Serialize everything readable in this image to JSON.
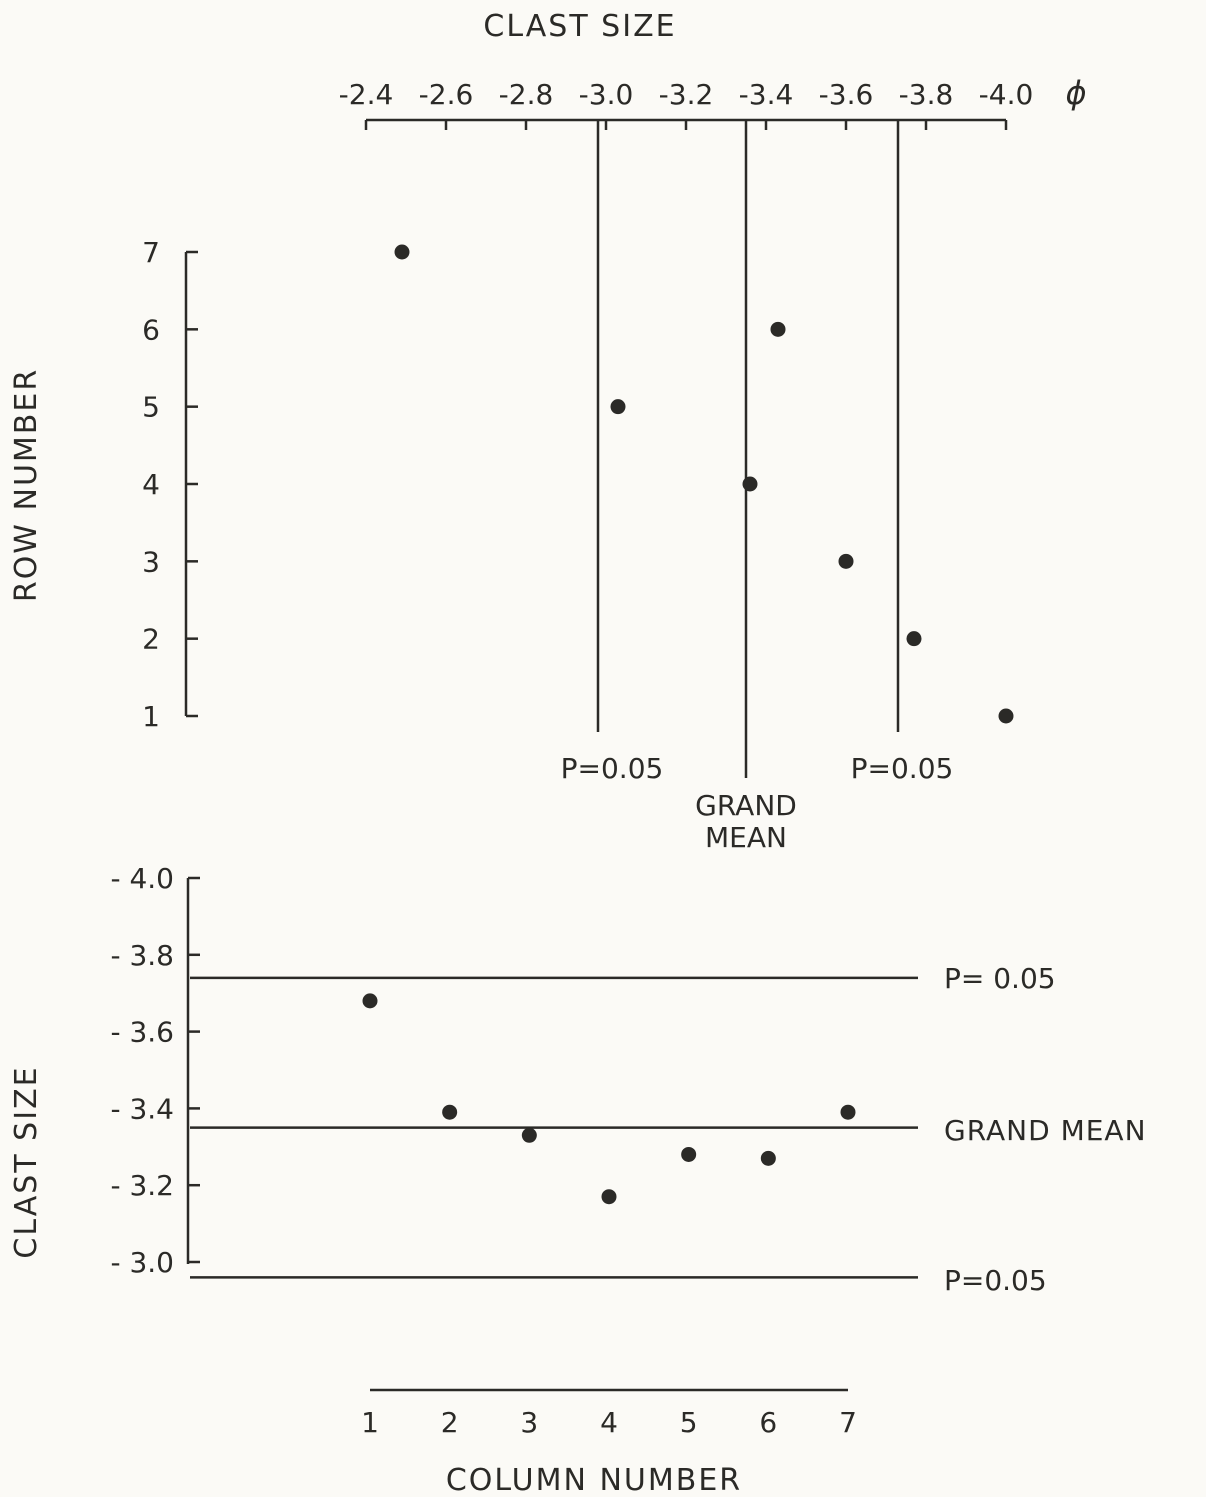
{
  "chart_data": [
    {
      "id": "rows",
      "type": "scatter",
      "title": "",
      "xlabel": "CLAST SIZE",
      "x_unit": "ϕ",
      "ylabel": "ROW NUMBER",
      "x_ticks": [
        "-2.4",
        "-2.6",
        "-2.8",
        "-3.0",
        "-3.2",
        "-3.4",
        "-3.6",
        "-3.8",
        "-4.0"
      ],
      "x_tick_values": [
        -2.4,
        -2.6,
        -2.8,
        -3.0,
        -3.2,
        -3.4,
        -3.6,
        -3.8,
        -4.0
      ],
      "y_ticks": [
        "1",
        "2",
        "3",
        "4",
        "5",
        "6",
        "7"
      ],
      "xlim": [
        -2.4,
        -4.0
      ],
      "ylim": [
        1,
        7
      ],
      "points": [
        {
          "row": 7,
          "x": -2.49
        },
        {
          "row": 6,
          "x": -3.43
        },
        {
          "row": 5,
          "x": -3.03
        },
        {
          "row": 4,
          "x": -3.36
        },
        {
          "row": 3,
          "x": -3.6
        },
        {
          "row": 2,
          "x": -3.77
        },
        {
          "row": 1,
          "x": -4.0
        }
      ],
      "reference_lines": [
        {
          "label": "P=0.05",
          "x": -2.98
        },
        {
          "label": "GRAND MEAN",
          "x": -3.35
        },
        {
          "label": "P=0.05",
          "x": -3.73
        }
      ]
    },
    {
      "id": "columns",
      "type": "scatter",
      "title": "",
      "xlabel": "COLUMN NUMBER",
      "ylabel": "CLAST SIZE",
      "x_ticks": [
        "1",
        "2",
        "3",
        "4",
        "5",
        "6",
        "7"
      ],
      "y_ticks": [
        "- 3.0",
        "- 3.2",
        "- 3.4",
        "- 3.6",
        "- 3.8",
        "- 4.0"
      ],
      "y_tick_values": [
        -3.0,
        -3.2,
        -3.4,
        -3.6,
        -3.8,
        -4.0
      ],
      "xlim": [
        1,
        7
      ],
      "ylim": [
        -3.0,
        -4.0
      ],
      "points": [
        {
          "column": 1,
          "y": -3.68
        },
        {
          "column": 2,
          "y": -3.39
        },
        {
          "column": 3,
          "y": -3.33
        },
        {
          "column": 4,
          "y": -3.17
        },
        {
          "column": 5,
          "y": -3.28
        },
        {
          "column": 6,
          "y": -3.27
        },
        {
          "column": 7,
          "y": -3.39
        }
      ],
      "reference_lines": [
        {
          "label": "P= 0.05",
          "y": -3.74
        },
        {
          "label": "GRAND MEAN",
          "y": -3.35
        },
        {
          "label": "P=0.05",
          "y": -2.96
        }
      ]
    }
  ]
}
